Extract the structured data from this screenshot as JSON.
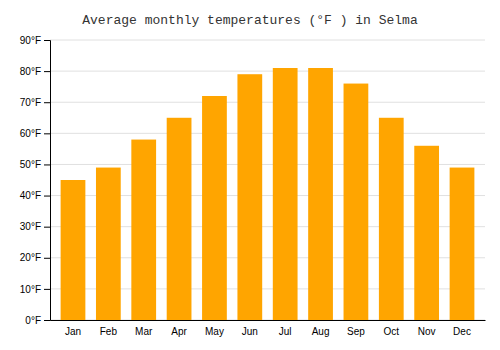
{
  "chart_data": {
    "type": "bar",
    "title": "Average monthly temperatures (°F ) in Selma",
    "categories": [
      "Jan",
      "Feb",
      "Mar",
      "Apr",
      "May",
      "Jun",
      "Jul",
      "Aug",
      "Sep",
      "Oct",
      "Nov",
      "Dec"
    ],
    "values": [
      45,
      49,
      58,
      65,
      72,
      79,
      81,
      81,
      76,
      65,
      56,
      49
    ],
    "color": "#FFA500",
    "ylim": [
      0,
      90
    ],
    "yticks": [
      {
        "value": 0,
        "label": "0°F"
      },
      {
        "value": 10,
        "label": "10°F"
      },
      {
        "value": 20,
        "label": "20°F"
      },
      {
        "value": 30,
        "label": "30°F"
      },
      {
        "value": 40,
        "label": "40°F"
      },
      {
        "value": 50,
        "label": "50°F"
      },
      {
        "value": 60,
        "label": "60°F"
      },
      {
        "value": 70,
        "label": "70°F"
      },
      {
        "value": 80,
        "label": "80°F"
      },
      {
        "value": 90,
        "label": "90°F"
      }
    ],
    "grid": true
  }
}
